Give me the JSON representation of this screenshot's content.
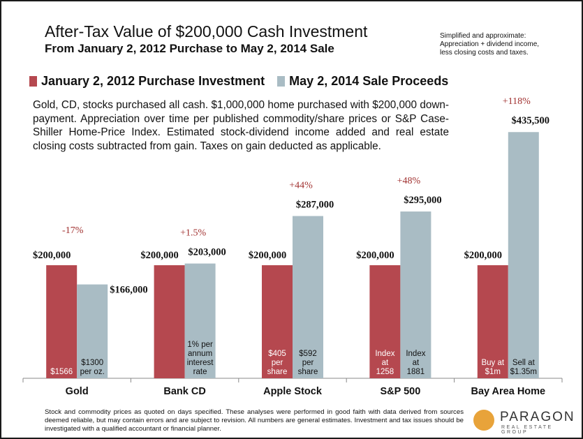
{
  "header": {
    "title": "After-Tax Value of $200,000 Cash Investment",
    "subtitle": "From January 2, 2012 Purchase to May 2, 2014 Sale",
    "note_lines": [
      "Simplified and approximate:",
      "Appreciation + dividend income,",
      "less closing costs and taxes."
    ]
  },
  "description": "Gold, CD, stocks purchased all cash. $1,000,000 home purchased with $200,000 down-payment. Appreciation over time per published commodity/share prices or S&P Case-Shiller Home-Price Index. Estimated stock-dividend income added and real estate closing costs subtracted from gain. Taxes on gain deducted as applicable.",
  "footer": "Stock and commodity prices as quoted on days specified. These analyses were performed in good faith with data derived from sources deemed reliable, but may contain errors and are subject to revision. All numbers are general estimates. Investment and tax issues should be investigated with a qualified accountant or financial planner.",
  "logo": {
    "brand": "PARAGON",
    "sub": "REAL ESTATE GROUP"
  },
  "colors": {
    "purchase": "#b5484f",
    "sale": "#a9bcc4",
    "pct": "#a0302f"
  },
  "chart_data": {
    "type": "bar",
    "categories": [
      "Gold",
      "Bank CD",
      "Apple Stock",
      "S&P 500",
      "Bay Area Home"
    ],
    "series": [
      {
        "name": "January 2, 2012 Purchase Investment",
        "values": [
          200000,
          200000,
          200000,
          200000,
          200000
        ]
      },
      {
        "name": "May 2, 2014 Sale Proceeds",
        "values": [
          166000,
          203000,
          287000,
          295000,
          435500
        ]
      }
    ],
    "value_labels": {
      "purchase": [
        "$200,000",
        "$200,000",
        "$200,000",
        "$200,000",
        "$200,000"
      ],
      "sale": [
        "$166,000",
        "$203,000",
        "$287,000",
        "$295,000",
        "$435,500"
      ]
    },
    "pct_change": [
      "-17%",
      "+1.5%",
      "+44%",
      "+48%",
      "+118%"
    ],
    "inner_labels": {
      "purchase": [
        [
          "$1566"
        ],
        [],
        [
          "$405",
          "per",
          "share"
        ],
        [
          "Index",
          "at",
          "1258"
        ],
        [
          "Buy at",
          "$1m"
        ]
      ],
      "sale": [
        [
          "$1300",
          "per oz."
        ],
        [
          "1% per",
          "annum",
          "interest",
          "rate"
        ],
        [
          "$592",
          "per",
          "share"
        ],
        [
          "Index",
          "at",
          "1881"
        ],
        [
          "Sell at",
          "$1.35m"
        ]
      ]
    },
    "ylim": [
      0,
      500000
    ]
  }
}
